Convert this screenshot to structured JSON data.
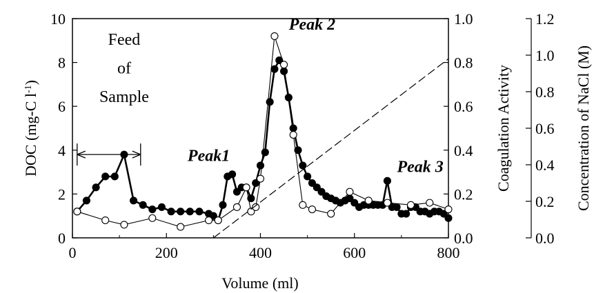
{
  "chart_data": {
    "type": "line",
    "xlabel": "Volume (ml)",
    "xlim": [
      0,
      800
    ],
    "x_ticks": [
      "0",
      "200",
      "400",
      "600",
      "800"
    ],
    "y_left": {
      "label_main": "DOC (mg-C l",
      "label_sup": "-1",
      "label_end": ")",
      "range": [
        0,
        10
      ],
      "ticks": [
        "0",
        "2",
        "4",
        "6",
        "8",
        "10"
      ]
    },
    "y_right1": {
      "label": "Coagulation Activity",
      "range": [
        0,
        1.0
      ],
      "ticks": [
        "0.0",
        "0.2",
        "0.4",
        "0.6",
        "0.8",
        "1.0"
      ]
    },
    "y_right2": {
      "label": "Concentration of NaCl (M)",
      "range": [
        0,
        1.2
      ],
      "ticks": [
        "0.0",
        "0.2",
        "0.4",
        "0.6",
        "0.8",
        "1.0",
        "1.2"
      ]
    },
    "series": [
      {
        "axis": "left",
        "marker": "filled-circle",
        "color": "#000000",
        "x": [
          10,
          30,
          50,
          70,
          90,
          110,
          130,
          150,
          170,
          190,
          210,
          230,
          250,
          270,
          290,
          300,
          310,
          320,
          330,
          340,
          350,
          360,
          370,
          380,
          390,
          400,
          410,
          420,
          430,
          440,
          450,
          460,
          470,
          480,
          490,
          500,
          510,
          520,
          530,
          540,
          550,
          560,
          570,
          580,
          590,
          600,
          610,
          620,
          630,
          640,
          650,
          660,
          670,
          680,
          690,
          700,
          710,
          720,
          730,
          740,
          750,
          760,
          770,
          780,
          790,
          800
        ],
        "y": [
          1.2,
          1.7,
          2.3,
          2.8,
          2.8,
          3.8,
          1.7,
          1.5,
          1.3,
          1.4,
          1.2,
          1.2,
          1.2,
          1.2,
          1.1,
          1.0,
          0.8,
          1.5,
          2.8,
          2.9,
          2.1,
          2.3,
          2.3,
          1.8,
          2.5,
          3.3,
          3.9,
          6.2,
          7.7,
          8.1,
          7.6,
          6.4,
          5.0,
          4.0,
          3.3,
          2.8,
          2.5,
          2.3,
          2.1,
          1.9,
          1.8,
          1.7,
          1.6,
          1.7,
          1.8,
          1.6,
          1.4,
          1.5,
          1.5,
          1.5,
          1.5,
          1.5,
          2.6,
          1.4,
          1.4,
          1.1,
          1.1,
          1.4,
          1.4,
          1.2,
          1.2,
          1.1,
          1.2,
          1.2,
          1.1,
          0.9
        ]
      },
      {
        "axis": "right1",
        "marker": "open-circle",
        "color": "#000000",
        "x": [
          10,
          70,
          110,
          170,
          230,
          290,
          310,
          350,
          370,
          380,
          390,
          400,
          430,
          450,
          470,
          490,
          510,
          550,
          590,
          630,
          670,
          720,
          760,
          800
        ],
        "y": [
          0.12,
          0.08,
          0.06,
          0.09,
          0.05,
          0.08,
          0.08,
          0.14,
          0.23,
          0.12,
          0.14,
          0.27,
          0.92,
          0.79,
          0.47,
          0.15,
          0.13,
          0.11,
          0.21,
          0.17,
          0.16,
          0.15,
          0.16,
          0.13
        ]
      },
      {
        "axis": "right2",
        "style": "dashed",
        "color": "#000000",
        "x": [
          300,
          800
        ],
        "y": [
          0,
          0.98
        ]
      }
    ],
    "annotations": [
      {
        "text": "Feed",
        "x": 110,
        "y": 8.8
      },
      {
        "text": "of",
        "x": 110,
        "y": 7.5
      },
      {
        "text": "Sample",
        "x": 110,
        "y": 6.2
      },
      {
        "text": "Peak1",
        "x": 290,
        "y": 3.5,
        "bold": true
      },
      {
        "text": "Peak 2",
        "x": 510,
        "y": 9.5,
        "bold": true
      },
      {
        "text": "Peak 3",
        "x": 740,
        "y": 3.0,
        "bold": true
      }
    ],
    "feed_arrow": {
      "x_start": 10,
      "x_end": 145,
      "y": 3.8
    }
  }
}
